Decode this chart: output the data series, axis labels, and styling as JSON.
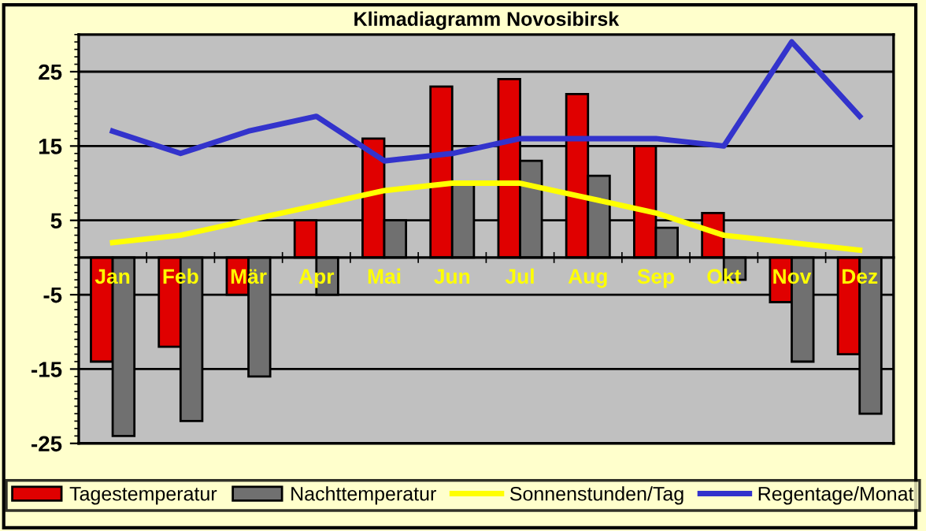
{
  "chart_data": {
    "type": "bar",
    "title": "Klimadiagramm Novosibirsk",
    "categories": [
      "Jan",
      "Feb",
      "Mär",
      "Apr",
      "Mai",
      "Jun",
      "Jul",
      "Aug",
      "Sep",
      "Okt",
      "Nov",
      "Dez"
    ],
    "series": [
      {
        "name": "Tagestemperatur",
        "color": "#e00000",
        "values": [
          -14,
          -12,
          -5,
          5,
          16,
          23,
          24,
          22,
          15,
          6,
          -6,
          -13
        ]
      },
      {
        "name": "Nachttemperatur",
        "color": "#707070",
        "values": [
          -24,
          -22,
          -16,
          -5,
          5,
          10,
          13,
          11,
          4,
          -3,
          -14,
          -21
        ]
      },
      {
        "name": "Sonnenstunden/Tag",
        "type": "line",
        "color": "#ffff00",
        "values": [
          2,
          3,
          5,
          7,
          9,
          10,
          10,
          8,
          6,
          3,
          2,
          1
        ]
      },
      {
        "name": "Regentage/Monat",
        "type": "line",
        "color": "#3333cc",
        "values": [
          17,
          14,
          17,
          19,
          13,
          14,
          16,
          16,
          16,
          15,
          29,
          19
        ]
      }
    ],
    "ylim": [
      -25,
      30
    ],
    "yticks": [
      25,
      15,
      5,
      -5,
      -15,
      -25
    ],
    "grid": "y",
    "legend": "bottom",
    "marker": "none",
    "line_style": "solid"
  }
}
